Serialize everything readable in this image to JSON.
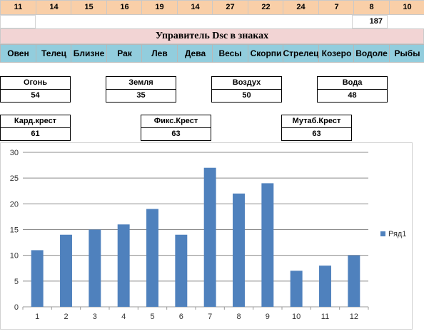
{
  "header_numbers": [
    "11",
    "14",
    "15",
    "16",
    "19",
    "14",
    "27",
    "22",
    "24",
    "7",
    "8",
    "10"
  ],
  "total_value": "187",
  "title": "Управитель Dsc в знаках",
  "signs": [
    "Овен",
    "Телец",
    "Близне",
    "Рак",
    "Лев",
    "Дева",
    "Весы",
    "Скорпи",
    "Стрелец",
    "Козеро",
    "Водоле",
    "Рыбы"
  ],
  "elements": [
    {
      "label": "Огонь",
      "value": "54"
    },
    {
      "label": "Земля",
      "value": "35"
    },
    {
      "label": "Воздух",
      "value": "50"
    },
    {
      "label": "Вода",
      "value": "48"
    }
  ],
  "crosses": [
    {
      "label": "Кард.крест",
      "value": "61"
    },
    {
      "label": "Фикс.Крест",
      "value": "63"
    },
    {
      "label": "Мутаб.Крест",
      "value": "63"
    }
  ],
  "chart_data": {
    "type": "bar",
    "categories": [
      "1",
      "2",
      "3",
      "4",
      "5",
      "6",
      "7",
      "8",
      "9",
      "10",
      "11",
      "12"
    ],
    "series": [
      {
        "name": "Ряд1",
        "values": [
          11,
          14,
          15,
          16,
          19,
          14,
          27,
          22,
          24,
          7,
          8,
          10
        ]
      }
    ],
    "ylim": [
      0,
      30
    ],
    "yticks": [
      "0",
      "5",
      "10",
      "15",
      "20",
      "25",
      "30"
    ],
    "grid": true,
    "legend": "right",
    "color": "#4f81bd"
  }
}
